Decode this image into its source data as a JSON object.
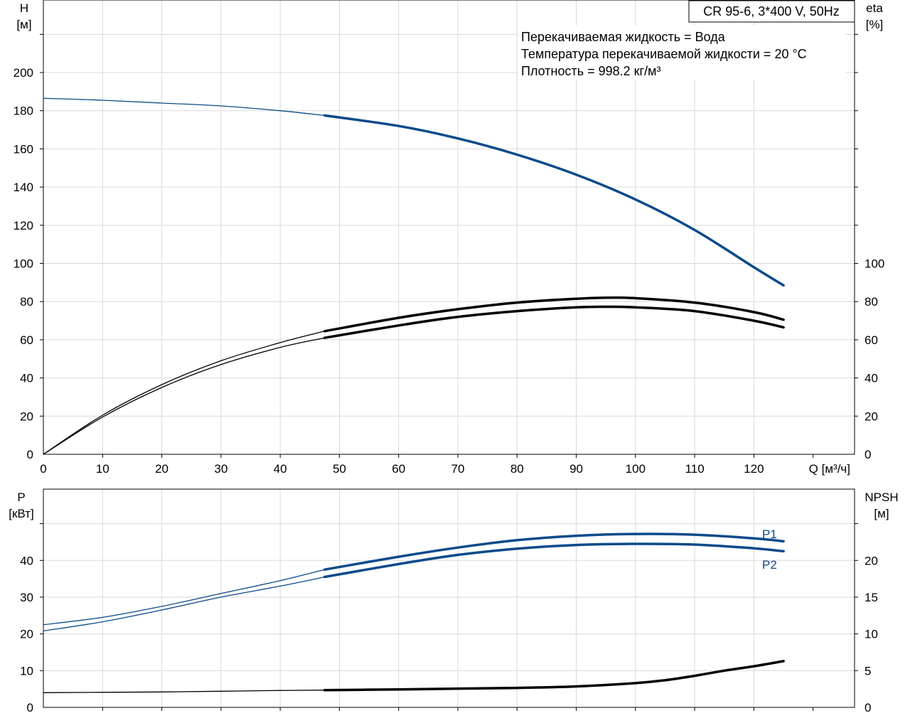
{
  "chart_data": [
    {
      "type": "line",
      "title": "CR 95-6, 3*400 V, 50Hz",
      "annotations": [
        "Перекачиваемая жидкость = Вода",
        "Температура перекачиваемой жидкости = 20 °C",
        "Плотность = 998.2 кг/м³"
      ],
      "xlabel": "Q [м³/ч]",
      "ylabel_left": [
        "H",
        "[м]"
      ],
      "ylabel_right": [
        "eta",
        "[%]"
      ],
      "xlim": [
        0,
        137
      ],
      "ylim_left": [
        0,
        238
      ],
      "ylim_right": [
        0,
        238
      ],
      "x_ticks": [
        0,
        10,
        20,
        30,
        40,
        50,
        60,
        70,
        80,
        90,
        100,
        110,
        120
      ],
      "y_ticks_left": [
        0,
        20,
        40,
        60,
        80,
        100,
        120,
        140,
        160,
        180,
        200
      ],
      "y_ticks_right": [
        0,
        20,
        40,
        60,
        80,
        100
      ],
      "grid": true,
      "series": [
        {
          "name": "",
          "color": "#0b4a8a",
          "axis": "left",
          "thick_from": 47.5,
          "x": [
            0,
            10,
            20,
            30,
            40,
            47.5,
            60,
            70,
            80,
            90,
            100,
            110,
            120,
            125
          ],
          "y": [
            186.5,
            185.5,
            184,
            182.5,
            180,
            177.5,
            172,
            165.5,
            157,
            146.5,
            133.5,
            117.5,
            98,
            88.5
          ]
        },
        {
          "name": "",
          "color": "#000000",
          "axis": "right",
          "thick_from": 47.5,
          "x": [
            0,
            10,
            20,
            30,
            40,
            47.5,
            60,
            70,
            80,
            90,
            95,
            100,
            110,
            120,
            125
          ],
          "y": [
            0,
            20.5,
            36.5,
            49,
            58.5,
            64.5,
            71.5,
            76,
            79.5,
            81.5,
            82,
            81.8,
            79.5,
            74.5,
            70.5
          ]
        },
        {
          "name": "",
          "color": "#000000",
          "axis": "right",
          "thick_from": 47.5,
          "x": [
            0,
            10,
            20,
            30,
            40,
            47.5,
            60,
            70,
            80,
            90,
            95,
            100,
            110,
            120,
            125
          ],
          "y": [
            0,
            19.5,
            35,
            47,
            56,
            61,
            67.5,
            72,
            75,
            77,
            77.3,
            77,
            75,
            70,
            66.5
          ]
        }
      ]
    },
    {
      "type": "line",
      "xlim": [
        0,
        137
      ],
      "ylabel_left": [
        "P",
        "[кВт]"
      ],
      "ylabel_right": [
        "NPSH",
        "[м]"
      ],
      "ylim_left": [
        0,
        59.4
      ],
      "ylim_right": [
        0,
        29.7
      ],
      "y_ticks_left": [
        0,
        10,
        20,
        30,
        40
      ],
      "y_ticks_right": [
        0,
        5,
        10,
        15,
        20
      ],
      "grid": true,
      "series": [
        {
          "name": "P1",
          "color": "#0b4a8a",
          "axis": "left",
          "thick_from": 47.5,
          "x": [
            0,
            10,
            20,
            30,
            40,
            47.5,
            60,
            70,
            80,
            90,
            100,
            110,
            120,
            125
          ],
          "y": [
            22.5,
            24.5,
            27.5,
            31,
            34.5,
            37.5,
            41,
            43.5,
            45.5,
            46.7,
            47.2,
            47,
            46,
            45.2
          ]
        },
        {
          "name": "P2",
          "color": "#0b4a8a",
          "axis": "left",
          "thick_from": 47.5,
          "x": [
            0,
            10,
            20,
            30,
            40,
            47.5,
            60,
            70,
            80,
            90,
            100,
            110,
            120,
            125
          ],
          "y": [
            20.8,
            23.3,
            26.5,
            30,
            33,
            35.5,
            39,
            41.5,
            43.2,
            44.2,
            44.5,
            44.3,
            43.3,
            42.5
          ]
        },
        {
          "name": "",
          "color": "#000000",
          "axis": "right",
          "thick_from": 47.5,
          "x": [
            0,
            10,
            20,
            30,
            40,
            47.5,
            60,
            70,
            80,
            90,
            100,
            105,
            110,
            115,
            120,
            125
          ],
          "y": [
            2,
            2.05,
            2.1,
            2.2,
            2.3,
            2.35,
            2.45,
            2.55,
            2.65,
            2.85,
            3.3,
            3.7,
            4.3,
            5,
            5.6,
            6.3
          ]
        }
      ]
    }
  ]
}
